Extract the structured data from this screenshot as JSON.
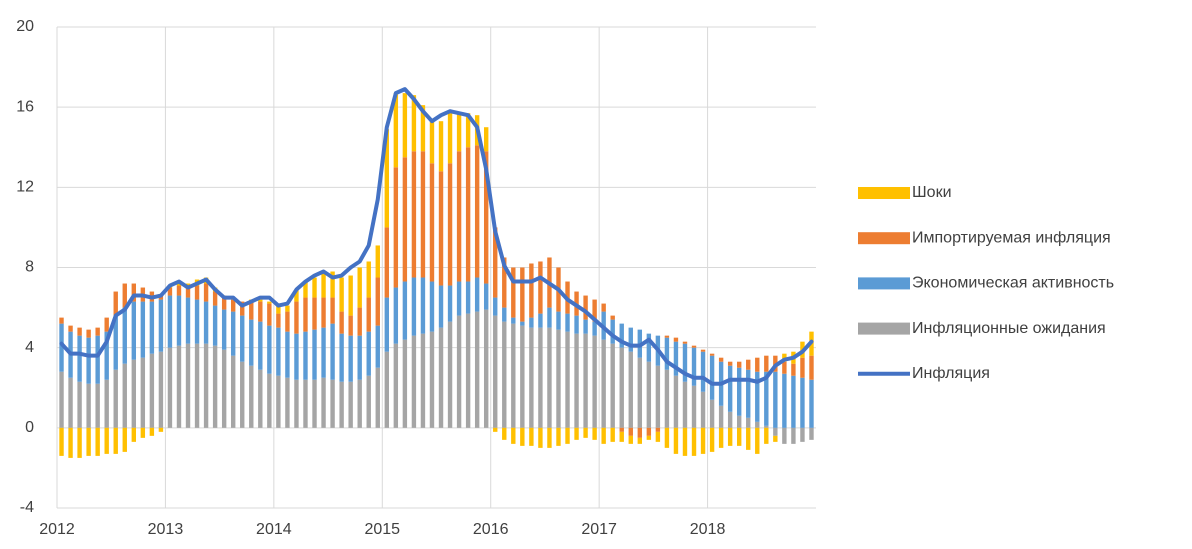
{
  "chart_data": {
    "type": "bar",
    "categories": [
      "2012",
      null,
      null,
      null,
      null,
      null,
      null,
      null,
      null,
      null,
      null,
      null,
      "2013",
      null,
      null,
      null,
      null,
      null,
      null,
      null,
      null,
      null,
      null,
      null,
      "2014",
      null,
      null,
      null,
      null,
      null,
      null,
      null,
      null,
      null,
      null,
      null,
      "2015",
      null,
      null,
      null,
      null,
      null,
      null,
      null,
      null,
      null,
      null,
      null,
      "2016",
      null,
      null,
      null,
      null,
      null,
      null,
      null,
      null,
      null,
      null,
      null,
      "2017",
      null,
      null,
      null,
      null,
      null,
      null,
      null,
      null,
      null,
      null,
      null,
      "2018",
      null,
      null,
      null,
      null,
      null,
      null,
      null,
      null,
      null,
      null,
      null
    ],
    "ylim": [
      -4,
      20
    ],
    "yticks": [
      -4,
      0,
      4,
      8,
      12,
      16,
      20
    ],
    "grid": true,
    "series": [
      {
        "name": "Инфляционные ожидания",
        "type": "bar",
        "color": "#a5a5a5",
        "values": [
          2.8,
          2.5,
          2.3,
          2.2,
          2.2,
          2.4,
          2.9,
          3.2,
          3.4,
          3.5,
          3.7,
          3.8,
          4.0,
          4.1,
          4.2,
          4.2,
          4.2,
          4.1,
          3.9,
          3.6,
          3.3,
          3.1,
          2.9,
          2.7,
          2.6,
          2.5,
          2.4,
          2.4,
          2.4,
          2.5,
          2.4,
          2.3,
          2.3,
          2.4,
          2.6,
          3.0,
          3.8,
          4.2,
          4.4,
          4.6,
          4.7,
          4.8,
          5.0,
          5.3,
          5.6,
          5.7,
          5.8,
          5.9,
          5.6,
          5.3,
          5.2,
          5.1,
          5.0,
          5.0,
          5.0,
          4.9,
          4.8,
          4.7,
          4.7,
          4.6,
          4.4,
          4.2,
          4.0,
          3.8,
          3.5,
          3.3,
          3.1,
          2.9,
          2.6,
          2.3,
          2.1,
          1.8,
          1.4,
          1.1,
          0.8,
          0.6,
          0.5,
          0.3,
          0.1,
          -0.4,
          -0.8,
          -0.8,
          -0.7,
          -0.6
        ]
      },
      {
        "name": "Экономическая активность",
        "type": "bar",
        "color": "#5b9bd5",
        "values": [
          2.4,
          2.3,
          2.3,
          2.3,
          2.4,
          2.4,
          2.7,
          2.8,
          2.9,
          2.8,
          2.6,
          2.6,
          2.6,
          2.5,
          2.3,
          2.2,
          2.1,
          2.0,
          2.0,
          2.2,
          2.3,
          2.3,
          2.4,
          2.4,
          2.4,
          2.3,
          2.3,
          2.4,
          2.5,
          2.5,
          2.8,
          2.4,
          2.3,
          2.2,
          2.2,
          2.1,
          2.7,
          2.8,
          2.9,
          2.9,
          2.8,
          2.5,
          2.1,
          1.8,
          1.7,
          1.6,
          1.7,
          1.3,
          0.9,
          0.7,
          0.3,
          0.2,
          0.5,
          0.7,
          1.0,
          0.9,
          0.9,
          0.9,
          0.7,
          0.7,
          1.4,
          1.2,
          1.2,
          1.2,
          1.4,
          1.4,
          1.5,
          1.6,
          1.7,
          1.9,
          1.9,
          2.0,
          2.2,
          2.2,
          2.3,
          2.4,
          2.4,
          2.5,
          2.7,
          2.8,
          2.7,
          2.6,
          2.5,
          2.4
        ]
      },
      {
        "name": "Импортируемая инфляция",
        "type": "bar",
        "color": "#ed7d31",
        "values": [
          0.3,
          0.3,
          0.4,
          0.4,
          0.4,
          0.7,
          1.2,
          1.2,
          0.9,
          0.7,
          0.5,
          0.2,
          0.4,
          0.5,
          0.5,
          0.7,
          0.9,
          0.7,
          0.6,
          0.6,
          0.7,
          0.9,
          1.0,
          1.1,
          0.7,
          1.0,
          1.6,
          1.7,
          1.6,
          1.5,
          1.3,
          1.1,
          1.0,
          1.4,
          1.7,
          2.4,
          3.5,
          6.0,
          6.2,
          6.3,
          6.3,
          5.9,
          5.7,
          6.1,
          6.5,
          6.7,
          6.6,
          6.6,
          3.5,
          2.5,
          2.5,
          2.7,
          2.7,
          2.6,
          2.5,
          2.2,
          1.6,
          1.2,
          1.2,
          1.1,
          0.4,
          0.2,
          -0.2,
          -0.4,
          -0.5,
          -0.4,
          -0.2,
          0.1,
          0.2,
          0.1,
          0.1,
          0.1,
          0.1,
          0.2,
          0.2,
          0.3,
          0.5,
          0.7,
          0.8,
          0.8,
          0.6,
          0.6,
          1.0,
          1.2
        ]
      },
      {
        "name": "Шоки",
        "type": "bar",
        "color": "#ffc000",
        "values": [
          -1.4,
          -1.5,
          -1.5,
          -1.4,
          -1.4,
          -1.3,
          -1.3,
          -1.2,
          -0.7,
          -0.5,
          -0.4,
          -0.2,
          0.1,
          0.2,
          0.2,
          0.3,
          0.3,
          0.2,
          0.1,
          0.1,
          0.0,
          0.1,
          0.1,
          0.1,
          0.4,
          0.3,
          0.6,
          0.8,
          1.0,
          1.3,
          1.3,
          1.7,
          2.0,
          2.0,
          1.8,
          1.6,
          4.9,
          3.7,
          3.2,
          2.8,
          2.3,
          2.2,
          2.5,
          2.5,
          1.9,
          1.7,
          1.5,
          1.2,
          -0.2,
          -0.6,
          -0.8,
          -0.9,
          -0.9,
          -1.0,
          -1.0,
          -0.9,
          -0.8,
          -0.6,
          -0.5,
          -0.6,
          -0.8,
          -0.7,
          -0.5,
          -0.4,
          -0.3,
          -0.2,
          -0.5,
          -1.0,
          -1.3,
          -1.4,
          -1.4,
          -1.3,
          -1.2,
          -1.0,
          -0.9,
          -0.9,
          -1.1,
          -1.3,
          -0.8,
          -0.3,
          0.4,
          0.6,
          0.8,
          1.2
        ]
      },
      {
        "name": "Инфляция",
        "type": "line",
        "color": "#4472c4",
        "values": [
          4.2,
          3.7,
          3.7,
          3.6,
          3.6,
          4.3,
          5.6,
          5.9,
          6.6,
          6.6,
          6.5,
          6.6,
          7.1,
          7.3,
          7.0,
          7.2,
          7.4,
          6.9,
          6.5,
          6.5,
          6.1,
          6.3,
          6.5,
          6.5,
          6.1,
          6.2,
          6.9,
          7.3,
          7.6,
          7.8,
          7.5,
          7.6,
          8.0,
          8.3,
          9.1,
          11.4,
          15.0,
          16.7,
          16.9,
          16.4,
          15.8,
          15.3,
          15.6,
          15.8,
          15.7,
          15.6,
          15.0,
          12.9,
          9.8,
          8.1,
          7.3,
          7.3,
          7.3,
          7.5,
          7.2,
          6.9,
          6.4,
          6.1,
          5.8,
          5.4,
          5.0,
          4.6,
          4.3,
          4.1,
          4.1,
          4.4,
          3.9,
          3.3,
          3.0,
          2.7,
          2.5,
          2.5,
          2.2,
          2.2,
          2.4,
          2.4,
          2.4,
          2.3,
          2.5,
          3.1,
          3.4,
          3.5,
          3.8,
          4.3
        ]
      }
    ]
  }
}
